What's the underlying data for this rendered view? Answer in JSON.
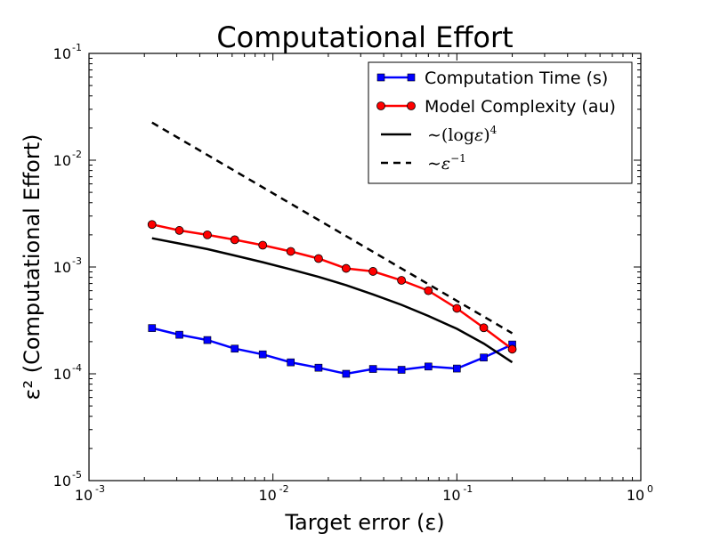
{
  "chart_data": {
    "type": "line",
    "title": "Computational Effort",
    "xlabel": "Target error (ε)",
    "ylabel": "ε² (Computational Effort)",
    "xscale": "log",
    "yscale": "log",
    "xlim": [
      0.001,
      1
    ],
    "ylim": [
      1e-05,
      0.1
    ],
    "x_ticks": [
      {
        "base": "10",
        "exp": "-3"
      },
      {
        "base": "10",
        "exp": "-2"
      },
      {
        "base": "10",
        "exp": "-1"
      },
      {
        "base": "10",
        "exp": "0"
      }
    ],
    "y_ticks": [
      {
        "base": "10",
        "exp": "-5"
      },
      {
        "base": "10",
        "exp": "-4"
      },
      {
        "base": "10",
        "exp": "-3"
      },
      {
        "base": "10",
        "exp": "-2"
      },
      {
        "base": "10",
        "exp": "-1"
      }
    ],
    "legend_position": "top-right",
    "grid": false,
    "series": [
      {
        "name": "Computation Time (s)",
        "color": "#0000ff",
        "marker": "square",
        "linestyle": "solid",
        "x": [
          0.0022,
          0.0031,
          0.0044,
          0.0062,
          0.0088,
          0.0125,
          0.0177,
          0.025,
          0.035,
          0.05,
          0.07,
          0.1,
          0.14,
          0.2
        ],
        "y": [
          0.000268,
          0.000232,
          0.000207,
          0.000172,
          0.000152,
          0.000128,
          0.000114,
          0.0001,
          0.000111,
          0.000109,
          0.000117,
          0.000112,
          0.000142,
          0.000188
        ]
      },
      {
        "name": "Model Complexity (au)",
        "color": "#ff0000",
        "marker": "circle",
        "linestyle": "solid",
        "x": [
          0.0022,
          0.0031,
          0.0044,
          0.0062,
          0.0088,
          0.0125,
          0.0177,
          0.025,
          0.035,
          0.05,
          0.07,
          0.1,
          0.14,
          0.2
        ],
        "y": [
          0.0025,
          0.0022,
          0.002,
          0.0018,
          0.0016,
          0.0014,
          0.0012,
          0.00097,
          0.00091,
          0.00075,
          0.0006,
          0.00041,
          0.00027,
          0.00017
        ]
      },
      {
        "name": "~(log ε)^4",
        "name_display": {
          "prefix": "∼(log",
          "var": "ε",
          "suffix": ")",
          "sup": "4"
        },
        "color": "#000000",
        "marker": "none",
        "linestyle": "solid",
        "x": [
          0.0022,
          0.0031,
          0.0044,
          0.0062,
          0.0088,
          0.0125,
          0.0177,
          0.025,
          0.035,
          0.05,
          0.07,
          0.1,
          0.14,
          0.2
        ],
        "y": [
          0.00186,
          0.00166,
          0.00147,
          0.00128,
          0.00111,
          0.00095,
          0.000808,
          0.000676,
          0.000554,
          0.000442,
          0.000348,
          0.000264,
          0.000192,
          0.000128
        ]
      },
      {
        "name": "~ε^-1",
        "name_display": {
          "prefix": "∼",
          "var": "ε",
          "suffix": "",
          "sup": "−1"
        },
        "color": "#000000",
        "marker": "none",
        "linestyle": "dashed",
        "x": [
          0.0022,
          0.2
        ],
        "y": [
          0.0225,
          0.00024
        ]
      }
    ]
  }
}
